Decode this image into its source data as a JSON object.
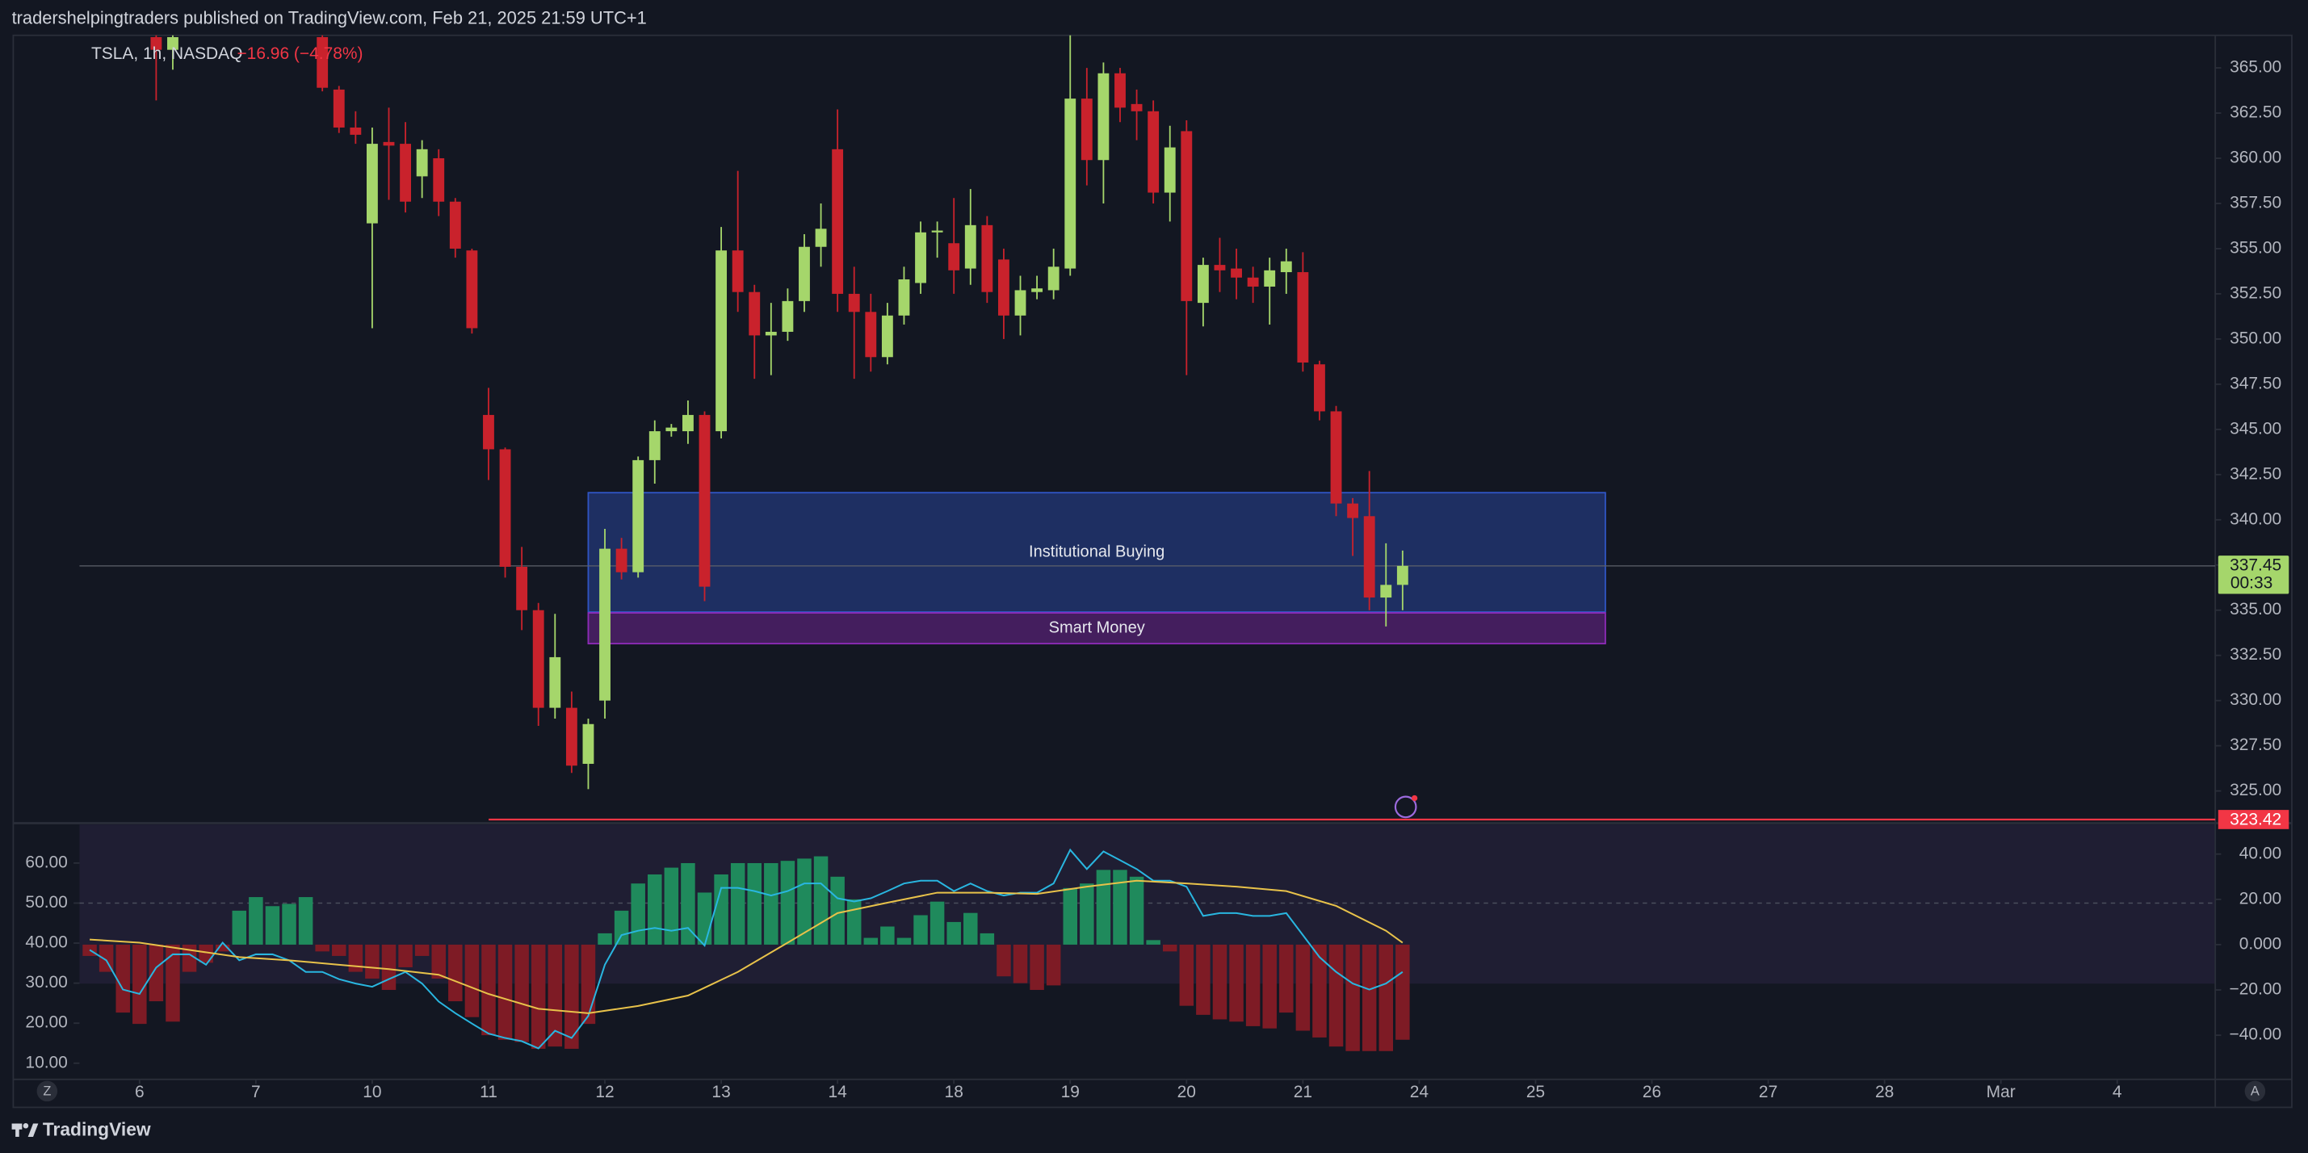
{
  "header": {
    "text": "tradershelpingtraders published on TradingView.com, Feb 21, 2025 21:59 UTC+1"
  },
  "footer": {
    "brand": "TradingView"
  },
  "ui": {
    "zoom_button": "Z",
    "auto_button": "A"
  },
  "chart_data": [
    {
      "type": "candlestick",
      "title": "TSLA, 1h, NASDAQ",
      "change": "−16.96 (−4.78%)",
      "change_color": "#f23645",
      "up_color": "#a5d66b",
      "down_color": "#c9222c",
      "x": [
        1,
        2,
        11,
        12,
        13,
        14,
        15,
        16,
        17,
        18,
        19,
        20,
        21,
        22,
        23,
        24,
        25,
        26,
        27,
        28,
        29,
        30,
        31,
        32,
        33,
        34,
        35,
        36,
        37,
        38,
        39,
        40,
        41,
        42,
        43,
        44,
        45,
        46,
        47,
        48,
        49,
        50,
        51,
        52,
        53,
        54,
        55,
        56,
        57,
        58,
        59,
        60,
        61,
        62,
        63,
        64,
        65,
        66,
        67,
        68,
        69,
        70,
        71,
        72,
        73,
        74,
        75,
        76
      ],
      "open": [
        366.7,
        366.0,
        366.7,
        363.8,
        361.7,
        356.4,
        360.9,
        360.8,
        359.0,
        360.0,
        357.6,
        354.9,
        345.8,
        343.9,
        337.4,
        335.0,
        329.6,
        329.6,
        326.5,
        330.0,
        338.4,
        337.1,
        343.3,
        344.9,
        344.9,
        345.8,
        344.9,
        354.9,
        352.6,
        350.2,
        350.4,
        352.1,
        355.1,
        360.5,
        352.5,
        351.5,
        349.0,
        351.3,
        353.1,
        355.9,
        355.3,
        353.9,
        356.3,
        354.4,
        351.3,
        352.6,
        352.7,
        353.9,
        363.3,
        359.9,
        364.7,
        363.0,
        362.6,
        358.1,
        361.5,
        352.0,
        354.1,
        353.9,
        353.4,
        352.9,
        353.7,
        353.7,
        348.6,
        346.0,
        340.9,
        340.2,
        335.7,
        336.4
      ],
      "high": [
        366.8,
        366.8,
        366.8,
        364.0,
        362.6,
        361.7,
        362.8,
        362.0,
        361.0,
        360.5,
        357.8,
        355.0,
        347.3,
        344.0,
        338.5,
        335.4,
        334.8,
        330.5,
        329.0,
        339.5,
        339.0,
        343.5,
        345.5,
        345.3,
        346.6,
        346.0,
        356.2,
        359.3,
        353.0,
        352.0,
        352.8,
        355.8,
        357.5,
        362.7,
        354.0,
        352.5,
        352.0,
        354.0,
        356.5,
        356.5,
        357.8,
        358.3,
        356.8,
        355.0,
        353.5,
        353.5,
        355.0,
        366.8,
        365.0,
        365.3,
        365.0,
        363.8,
        363.2,
        361.8,
        362.1,
        354.5,
        355.6,
        355.0,
        354.0,
        354.5,
        355.0,
        354.8,
        348.8,
        346.3,
        341.2,
        342.7,
        338.7,
        338.3
      ],
      "low": [
        363.2,
        364.9,
        363.7,
        361.4,
        360.8,
        350.6,
        357.7,
        357.0,
        357.8,
        356.8,
        354.5,
        350.3,
        342.2,
        336.8,
        333.9,
        328.6,
        329.0,
        326.0,
        325.1,
        329.0,
        336.7,
        336.8,
        342.0,
        344.6,
        344.2,
        335.5,
        344.5,
        351.5,
        347.8,
        348.0,
        349.9,
        351.5,
        354.0,
        351.5,
        347.8,
        348.2,
        348.6,
        350.8,
        352.5,
        354.5,
        352.5,
        353.0,
        352.0,
        350.0,
        350.2,
        352.2,
        352.2,
        353.5,
        358.5,
        357.5,
        362.0,
        361.0,
        357.5,
        356.5,
        348.0,
        350.7,
        352.6,
        352.2,
        352.0,
        350.8,
        352.5,
        348.2,
        345.5,
        340.2,
        338.0,
        335.0,
        334.1,
        335.0
      ],
      "close": [
        366.0,
        366.7,
        363.9,
        361.7,
        361.3,
        360.8,
        360.7,
        357.6,
        360.5,
        357.6,
        355.0,
        350.6,
        343.9,
        337.4,
        335.0,
        329.6,
        332.4,
        326.4,
        328.7,
        338.4,
        337.1,
        343.3,
        344.9,
        345.1,
        345.8,
        336.3,
        354.9,
        352.6,
        350.2,
        350.4,
        352.1,
        355.1,
        356.1,
        352.5,
        351.5,
        349.0,
        351.3,
        353.3,
        355.9,
        356.0,
        353.8,
        356.3,
        352.6,
        351.3,
        352.7,
        352.8,
        354.0,
        363.3,
        359.9,
        364.7,
        362.8,
        362.6,
        358.1,
        360.6,
        352.1,
        354.1,
        353.8,
        353.4,
        352.9,
        353.8,
        354.3,
        348.7,
        346.0,
        340.9,
        340.1,
        335.7,
        336.4,
        337.45
      ],
      "xlim": [
        -7.6,
        124.9
      ],
      "xticks": [
        {
          "value": 0,
          "label": "6"
        },
        {
          "value": 7,
          "label": "7"
        },
        {
          "value": 14,
          "label": "10"
        },
        {
          "value": 21,
          "label": "11"
        },
        {
          "value": 28,
          "label": "12"
        },
        {
          "value": 35,
          "label": "13"
        },
        {
          "value": 42,
          "label": "14"
        },
        {
          "value": 49,
          "label": "18"
        },
        {
          "value": 56,
          "label": "19"
        },
        {
          "value": 63,
          "label": "20"
        },
        {
          "value": 70,
          "label": "21"
        },
        {
          "value": 77,
          "label": "24"
        },
        {
          "value": 84,
          "label": "25"
        },
        {
          "value": 91,
          "label": "26"
        },
        {
          "value": 98,
          "label": "27"
        },
        {
          "value": 105,
          "label": "28"
        },
        {
          "value": 112,
          "label": "Mar"
        },
        {
          "value": 119,
          "label": "4"
        }
      ],
      "ylim": [
        323.3,
        366.8
      ],
      "yticks": [
        {
          "value": 325,
          "label": "325.00"
        },
        {
          "value": 327.5,
          "label": "327.50"
        },
        {
          "value": 330,
          "label": "330.00"
        },
        {
          "value": 332.5,
          "label": "332.50"
        },
        {
          "value": 335,
          "label": "335.00"
        },
        {
          "value": 337.5,
          "label": "337.50"
        },
        {
          "value": 340,
          "label": "340.00"
        },
        {
          "value": 342.5,
          "label": "342.50"
        },
        {
          "value": 345,
          "label": "345.00"
        },
        {
          "value": 347.5,
          "label": "347.50"
        },
        {
          "value": 350,
          "label": "350.00"
        },
        {
          "value": 352.5,
          "label": "352.50"
        },
        {
          "value": 355,
          "label": "355.00"
        },
        {
          "value": 357.5,
          "label": "357.50"
        },
        {
          "value": 360,
          "label": "360.00"
        },
        {
          "value": 362.5,
          "label": "362.50"
        },
        {
          "value": 365,
          "label": "365.00"
        }
      ],
      "last_price": {
        "value": 337.45,
        "countdown": "00:33",
        "color": "#a5d66b"
      },
      "level": {
        "value": 323.42,
        "color": "#f23645"
      },
      "zones": [
        {
          "label": "Institutional Buying",
          "x": [
            27,
            88.2
          ],
          "y": [
            334.9,
            341.5
          ],
          "color": "#2f55c4"
        },
        {
          "label": "Smart Money",
          "x": [
            27,
            88.2
          ],
          "y": [
            333.15,
            334.85
          ],
          "color": "#8e2bb8"
        }
      ]
    },
    {
      "type": "bar",
      "x": [
        -3,
        -2,
        -1,
        0,
        1,
        2,
        3,
        4,
        5,
        6,
        7,
        8,
        9,
        10,
        11,
        12,
        13,
        14,
        15,
        16,
        17,
        18,
        19,
        20,
        21,
        22,
        23,
        24,
        25,
        26,
        27,
        28,
        29,
        30,
        31,
        32,
        33,
        34,
        35,
        36,
        37,
        38,
        39,
        40,
        41,
        42,
        43,
        44,
        45,
        46,
        47,
        48,
        49,
        50,
        51,
        52,
        53,
        54,
        55,
        56,
        57,
        58,
        59,
        60,
        61,
        62,
        63,
        64,
        65,
        66,
        67,
        68,
        69,
        70,
        71,
        72,
        73,
        74,
        75,
        76
      ],
      "series": [
        {
          "type": "bar",
          "axis": "y2",
          "up_color": "#1f8a5c",
          "down_color": "#7e1b25",
          "values": [
            -5,
            -12,
            -30,
            -35,
            -25,
            -34,
            -12,
            -8,
            -3,
            15,
            21,
            17,
            18,
            21,
            -3,
            -5,
            -12,
            -15,
            -20,
            -10,
            -5,
            -15,
            -25,
            -32,
            -40,
            -42,
            -43,
            -46,
            -45,
            -46,
            -35,
            5,
            15,
            27,
            31,
            34,
            36,
            23,
            31,
            36,
            36,
            36,
            37,
            38,
            39,
            30,
            20,
            3,
            8,
            3,
            13,
            19,
            10,
            14,
            5,
            -14,
            -17,
            -20,
            -18,
            25,
            27,
            33,
            33,
            30,
            2,
            -3,
            -27,
            -31,
            -33,
            -34,
            -36,
            -37,
            -30,
            -38,
            -41,
            -45,
            -47,
            -47,
            -47,
            -42
          ]
        },
        {
          "type": "line",
          "color": "#29b6e0",
          "values": [
            38.3,
            35.7,
            28.4,
            27.3,
            33.9,
            37.2,
            37.2,
            34.6,
            40.1,
            35.7,
            37.2,
            37.2,
            35.7,
            32.8,
            32.8,
            31.0,
            29.9,
            29.1,
            31.0,
            32.8,
            29.9,
            25.4,
            22.5,
            19.9,
            17.4,
            16.3,
            15.5,
            13.7,
            18.1,
            16.3,
            21.8,
            34.6,
            42.0,
            43.1,
            43.8,
            43.1,
            43.8,
            39.4,
            53.8,
            53.8,
            53.0,
            51.9,
            53.0,
            54.9,
            54.9,
            51.2,
            50.4,
            51.2,
            53.0,
            54.9,
            55.6,
            55.6,
            53.0,
            54.9,
            53.0,
            51.9,
            52.6,
            52.6,
            54.9,
            63.3,
            58.5,
            62.9,
            60.7,
            58.5,
            55.6,
            55.6,
            54.1,
            46.8,
            47.5,
            47.5,
            46.8,
            46.8,
            47.5,
            42.0,
            36.5,
            32.8,
            29.9,
            28.4,
            29.9,
            32.8
          ]
        },
        {
          "type": "line",
          "color": "#e8c24a",
          "x": [
            -3,
            0,
            3,
            6,
            9,
            12,
            15,
            18,
            21,
            24,
            27,
            30,
            33,
            36,
            39,
            42,
            45,
            48,
            51,
            54,
            57,
            60,
            63,
            66,
            69,
            72,
            75,
            76
          ],
          "values": [
            40.9,
            40.1,
            38.3,
            36.5,
            35.7,
            34.6,
            33.5,
            32.1,
            27.3,
            23.6,
            22.5,
            24.3,
            26.9,
            32.8,
            40.1,
            47.5,
            50.1,
            52.6,
            52.6,
            52.3,
            54.1,
            55.6,
            54.9,
            54.1,
            53.0,
            49.3,
            43.1,
            40.1
          ]
        }
      ],
      "xlim": [
        -7.6,
        124.9
      ],
      "ylim": [
        5.96,
        69.6
      ],
      "yticks": [
        {
          "value": 10,
          "label": "10.00"
        },
        {
          "value": 20,
          "label": "20.00"
        },
        {
          "value": 30,
          "label": "30.00"
        },
        {
          "value": 40,
          "label": "40.00"
        },
        {
          "value": 50,
          "label": "50.00"
        },
        {
          "value": 60,
          "label": "60.00"
        }
      ],
      "y2lim": [
        -59.5,
        53
      ],
      "y2ticks": [
        {
          "value": 40,
          "label": "40.00"
        },
        {
          "value": 20,
          "label": "20.00"
        },
        {
          "value": 0,
          "label": "0.000"
        },
        {
          "value": -20,
          "label": "−20.00"
        },
        {
          "value": -40,
          "label": "−40.00"
        }
      ],
      "midline": 50
    }
  ]
}
